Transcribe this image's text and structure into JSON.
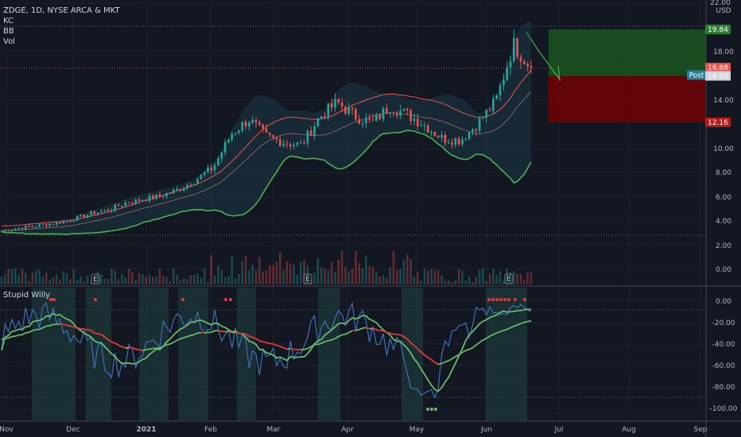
{
  "header": {
    "symbol_line": "ZDGE, 1D, NYSE ARCA & MKT",
    "indicator_kc": "KC",
    "indicator_bb": "BB",
    "indicator_vol": "Vol",
    "oscillator_name": "Stupid Willy"
  },
  "price_axis": {
    "currency_label": "USD",
    "ticks": [
      "0.00",
      "2.00",
      "4.00",
      "6.00",
      "8.00",
      "10.00",
      "14.00",
      "18.00",
      "22.00"
    ],
    "tick_values": [
      0,
      2,
      4,
      6,
      8,
      10,
      14,
      18,
      22
    ]
  },
  "tags": {
    "target_label": "19.84",
    "target_value": 19.84,
    "last_label": "16.68",
    "last_value": 16.68,
    "post_label": "Post",
    "post_price_label": "16.01",
    "post_value": 16.01,
    "entry_label": "16.00",
    "entry_value": 16.0,
    "stop_label": "12.16",
    "stop_value": 12.16
  },
  "osc_axis": {
    "ticks": [
      "0.00",
      "-20.00",
      "-40.00",
      "-60.00",
      "-80.00",
      "-100.00"
    ],
    "tick_values": [
      0,
      -20,
      -40,
      -60,
      -80,
      -100
    ]
  },
  "time_axis": {
    "labels": [
      "Nov",
      "Dec",
      "2021",
      "Feb",
      "Mar",
      "Apr",
      "May",
      "Jun",
      "Jul",
      "Aug",
      "Sep"
    ]
  },
  "earnings_marker": "E",
  "colors": {
    "background": "#131722",
    "up": "#26a69a",
    "down": "#ef5350",
    "bb_line": "#4caf50",
    "kc_line": "#ef5350",
    "target_zone": "#1b5e20",
    "stop_zone": "#7f0000",
    "osc_line": "#3f6fb5",
    "signal_green": "#66bb6a",
    "signal_red": "#e53935"
  },
  "chart_data": [
    {
      "type": "candlestick",
      "title": "ZDGE, 1D, NYSE ARCA & MKT",
      "x": [
        "Nov",
        "Dec",
        "2021",
        "Feb",
        "Mar",
        "Apr",
        "May",
        "Jun",
        "Jul",
        "Aug",
        "Sep"
      ],
      "close_weekly": [
        3.2,
        3.4,
        3.6,
        3.8,
        4.1,
        4.6,
        4.9,
        5.5,
        5.8,
        6.1,
        6.6,
        7.4,
        8.4,
        11.2,
        12.4,
        11.0,
        10.5,
        10.3,
        12.6,
        13.8,
        12.7,
        12.1,
        13.5,
        12.8,
        11.9,
        10.8,
        10.7,
        12.1,
        13.9,
        18.6,
        16.68
      ],
      "ylim": [
        -1,
        22
      ],
      "levels": {
        "target": 19.84,
        "last": 16.68,
        "post": 16.01,
        "entry": 16.0,
        "stop": 12.16
      }
    },
    {
      "type": "line",
      "title": "Stupid Willy",
      "ylim": [
        -105,
        5
      ],
      "series": []
    }
  ]
}
